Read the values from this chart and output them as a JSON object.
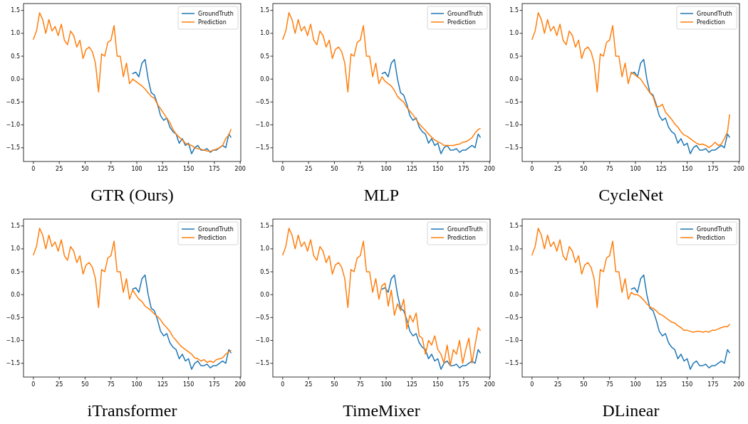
{
  "chart_data": [
    {
      "type": "line",
      "title": "GTR (Ours)",
      "legend": "top right",
      "xlim": [
        -9.55,
        200.55
      ],
      "ylim": [
        -1.8,
        1.65
      ],
      "xticks": [
        0,
        25,
        50,
        75,
        100,
        125,
        150,
        175,
        200
      ],
      "yticks": [
        {
          "value": -1.5,
          "label": "−1.5"
        },
        {
          "value": -1,
          "label": "−1.0"
        },
        {
          "value": -0.5,
          "label": "−0.5"
        },
        {
          "value": 0,
          "label": "0.0"
        },
        {
          "value": 0.5,
          "label": "0.5"
        },
        {
          "value": 1,
          "label": "1.0"
        },
        {
          "value": 1.5,
          "label": "1.5"
        }
      ],
      "x": [
        0,
        3,
        6,
        9,
        12,
        15,
        18,
        21,
        24,
        27,
        30,
        33,
        36,
        39,
        42,
        45,
        48,
        51,
        54,
        57,
        60,
        63,
        66,
        69,
        72,
        75,
        78,
        81,
        84,
        87,
        90,
        93,
        96,
        99,
        102,
        105,
        108,
        111,
        114,
        117,
        120,
        123,
        126,
        129,
        132,
        135,
        138,
        141,
        144,
        147,
        150,
        153,
        156,
        159,
        162,
        165,
        168,
        171,
        174,
        177,
        180,
        183,
        186,
        189,
        191
      ],
      "series": [
        {
          "name": "GroundTruth",
          "color": "#1f77b4",
          "values": [
            null,
            null,
            null,
            null,
            null,
            null,
            null,
            null,
            null,
            null,
            null,
            null,
            null,
            null,
            null,
            null,
            null,
            null,
            null,
            null,
            null,
            null,
            null,
            null,
            null,
            null,
            null,
            null,
            null,
            null,
            null,
            null,
            0.12,
            0.15,
            0.05,
            0.35,
            0.43,
            0.0,
            -0.3,
            -0.35,
            -0.55,
            -0.8,
            -0.9,
            -0.85,
            -1.05,
            -1.15,
            -1.2,
            -1.4,
            -1.3,
            -1.45,
            -1.4,
            -1.63,
            -1.5,
            -1.45,
            -1.55,
            -1.55,
            -1.52,
            -1.6,
            -1.55,
            -1.55,
            -1.5,
            -1.45,
            -1.5,
            -1.2,
            -1.27
          ]
        },
        {
          "name": "Prediction",
          "color": "#ff7f0e",
          "values": [
            0.87,
            1.05,
            1.45,
            1.3,
            1.0,
            1.3,
            1.05,
            1.15,
            0.95,
            1.2,
            0.85,
            0.75,
            1.05,
            0.95,
            0.7,
            0.85,
            0.45,
            0.65,
            0.7,
            0.6,
            0.35,
            -0.28,
            0.55,
            0.5,
            0.8,
            0.85,
            1.17,
            0.5,
            0.5,
            0.05,
            0.35,
            -0.1,
            0.0,
            -0.05,
            -0.1,
            -0.15,
            -0.22,
            -0.3,
            -0.38,
            -0.42,
            -0.55,
            -0.65,
            -0.75,
            -0.85,
            -0.95,
            -1.1,
            -1.2,
            -1.27,
            -1.33,
            -1.4,
            -1.43,
            -1.45,
            -1.5,
            -1.52,
            -1.53,
            -1.55,
            -1.57,
            -1.58,
            -1.55,
            -1.53,
            -1.5,
            -1.45,
            -1.3,
            -1.22,
            -1.1
          ]
        }
      ]
    },
    {
      "type": "line",
      "title": "MLP",
      "legend": "top right",
      "xlim": [
        -9.55,
        200.55
      ],
      "ylim": [
        -1.8,
        1.65
      ],
      "xticks": [
        0,
        25,
        50,
        75,
        100,
        125,
        150,
        175,
        200
      ],
      "yticks": [
        {
          "value": -1.5,
          "label": "−1.5"
        },
        {
          "value": -1,
          "label": "−1.0"
        },
        {
          "value": -0.5,
          "label": "−0.5"
        },
        {
          "value": 0,
          "label": "0.0"
        },
        {
          "value": 0.5,
          "label": "0.5"
        },
        {
          "value": 1,
          "label": "1.0"
        },
        {
          "value": 1.5,
          "label": "1.5"
        }
      ],
      "x": [
        0,
        3,
        6,
        9,
        12,
        15,
        18,
        21,
        24,
        27,
        30,
        33,
        36,
        39,
        42,
        45,
        48,
        51,
        54,
        57,
        60,
        63,
        66,
        69,
        72,
        75,
        78,
        81,
        84,
        87,
        90,
        93,
        96,
        99,
        102,
        105,
        108,
        111,
        114,
        117,
        120,
        123,
        126,
        129,
        132,
        135,
        138,
        141,
        144,
        147,
        150,
        153,
        156,
        159,
        162,
        165,
        168,
        171,
        174,
        177,
        180,
        183,
        186,
        189,
        191
      ],
      "series": [
        {
          "name": "GroundTruth",
          "color": "#1f77b4",
          "values": [
            null,
            null,
            null,
            null,
            null,
            null,
            null,
            null,
            null,
            null,
            null,
            null,
            null,
            null,
            null,
            null,
            null,
            null,
            null,
            null,
            null,
            null,
            null,
            null,
            null,
            null,
            null,
            null,
            null,
            null,
            null,
            null,
            0.12,
            0.15,
            0.05,
            0.35,
            0.43,
            0.0,
            -0.3,
            -0.35,
            -0.55,
            -0.8,
            -0.9,
            -0.85,
            -1.05,
            -1.15,
            -1.2,
            -1.4,
            -1.3,
            -1.45,
            -1.4,
            -1.63,
            -1.5,
            -1.45,
            -1.55,
            -1.55,
            -1.52,
            -1.6,
            -1.55,
            -1.55,
            -1.5,
            -1.45,
            -1.5,
            -1.2,
            -1.27
          ]
        },
        {
          "name": "Prediction",
          "color": "#ff7f0e",
          "values": [
            0.87,
            1.05,
            1.45,
            1.3,
            1.0,
            1.3,
            1.05,
            1.15,
            0.95,
            1.2,
            0.85,
            0.75,
            1.05,
            0.95,
            0.7,
            0.85,
            0.45,
            0.65,
            0.7,
            0.6,
            0.35,
            -0.28,
            0.55,
            0.5,
            0.8,
            0.85,
            1.17,
            0.5,
            0.5,
            0.05,
            0.35,
            -0.1,
            0.05,
            -0.05,
            -0.1,
            -0.15,
            -0.25,
            -0.38,
            -0.45,
            -0.5,
            -0.62,
            -0.7,
            -0.78,
            -0.88,
            -0.98,
            -1.05,
            -1.12,
            -1.2,
            -1.27,
            -1.33,
            -1.37,
            -1.4,
            -1.45,
            -1.45,
            -1.45,
            -1.45,
            -1.43,
            -1.42,
            -1.38,
            -1.37,
            -1.33,
            -1.28,
            -1.18,
            -1.1,
            -1.08
          ]
        }
      ]
    },
    {
      "type": "line",
      "title": "CycleNet",
      "legend": "top right",
      "xlim": [
        -9.55,
        200.55
      ],
      "ylim": [
        -1.8,
        1.65
      ],
      "xticks": [
        0,
        25,
        50,
        75,
        100,
        125,
        150,
        175,
        200
      ],
      "yticks": [
        {
          "value": -1.5,
          "label": "−1.5"
        },
        {
          "value": -1,
          "label": "−1.0"
        },
        {
          "value": -0.5,
          "label": "−0.5"
        },
        {
          "value": 0,
          "label": "0.0"
        },
        {
          "value": 0.5,
          "label": "0.5"
        },
        {
          "value": 1,
          "label": "1.0"
        },
        {
          "value": 1.5,
          "label": "1.5"
        }
      ],
      "x": [
        0,
        3,
        6,
        9,
        12,
        15,
        18,
        21,
        24,
        27,
        30,
        33,
        36,
        39,
        42,
        45,
        48,
        51,
        54,
        57,
        60,
        63,
        66,
        69,
        72,
        75,
        78,
        81,
        84,
        87,
        90,
        93,
        96,
        99,
        102,
        105,
        108,
        111,
        114,
        117,
        120,
        123,
        126,
        129,
        132,
        135,
        138,
        141,
        144,
        147,
        150,
        153,
        156,
        159,
        162,
        165,
        168,
        171,
        174,
        177,
        180,
        183,
        186,
        189,
        191
      ],
      "series": [
        {
          "name": "GroundTruth",
          "color": "#1f77b4",
          "values": [
            null,
            null,
            null,
            null,
            null,
            null,
            null,
            null,
            null,
            null,
            null,
            null,
            null,
            null,
            null,
            null,
            null,
            null,
            null,
            null,
            null,
            null,
            null,
            null,
            null,
            null,
            null,
            null,
            null,
            null,
            null,
            null,
            0.12,
            0.15,
            0.05,
            0.35,
            0.43,
            0.0,
            -0.3,
            -0.35,
            -0.55,
            -0.8,
            -0.9,
            -0.85,
            -1.05,
            -1.15,
            -1.2,
            -1.4,
            -1.3,
            -1.45,
            -1.4,
            -1.63,
            -1.5,
            -1.45,
            -1.55,
            -1.55,
            -1.52,
            -1.6,
            -1.55,
            -1.55,
            -1.5,
            -1.45,
            -1.5,
            -1.2,
            -1.27
          ]
        },
        {
          "name": "Prediction",
          "color": "#ff7f0e",
          "values": [
            0.87,
            1.05,
            1.45,
            1.3,
            1.0,
            1.3,
            1.05,
            1.15,
            0.95,
            1.2,
            0.85,
            0.75,
            1.05,
            0.95,
            0.7,
            0.85,
            0.45,
            0.65,
            0.7,
            0.6,
            0.35,
            -0.28,
            0.55,
            0.5,
            0.8,
            0.85,
            1.17,
            0.5,
            0.5,
            0.05,
            0.35,
            -0.1,
            0.15,
            0.1,
            0.05,
            0.0,
            -0.1,
            -0.2,
            -0.3,
            -0.38,
            -0.6,
            -0.6,
            -0.55,
            -0.72,
            -0.8,
            -0.88,
            -0.98,
            -1.05,
            -1.15,
            -1.22,
            -1.25,
            -1.3,
            -1.35,
            -1.4,
            -1.43,
            -1.42,
            -1.45,
            -1.5,
            -1.45,
            -1.38,
            -1.45,
            -1.42,
            -1.3,
            -1.15,
            -0.78
          ]
        }
      ]
    },
    {
      "type": "line",
      "title": "iTransformer",
      "legend": "top right",
      "xlim": [
        -9.55,
        200.55
      ],
      "ylim": [
        -1.8,
        1.65
      ],
      "xticks": [
        0,
        25,
        50,
        75,
        100,
        125,
        150,
        175,
        200
      ],
      "yticks": [
        {
          "value": -1.5,
          "label": "−1.5"
        },
        {
          "value": -1,
          "label": "−1.0"
        },
        {
          "value": -0.5,
          "label": "−0.5"
        },
        {
          "value": 0,
          "label": "0.0"
        },
        {
          "value": 0.5,
          "label": "0.5"
        },
        {
          "value": 1,
          "label": "1.0"
        },
        {
          "value": 1.5,
          "label": "1.5"
        }
      ],
      "x": [
        0,
        3,
        6,
        9,
        12,
        15,
        18,
        21,
        24,
        27,
        30,
        33,
        36,
        39,
        42,
        45,
        48,
        51,
        54,
        57,
        60,
        63,
        66,
        69,
        72,
        75,
        78,
        81,
        84,
        87,
        90,
        93,
        96,
        99,
        102,
        105,
        108,
        111,
        114,
        117,
        120,
        123,
        126,
        129,
        132,
        135,
        138,
        141,
        144,
        147,
        150,
        153,
        156,
        159,
        162,
        165,
        168,
        171,
        174,
        177,
        180,
        183,
        186,
        189,
        191
      ],
      "series": [
        {
          "name": "GroundTruth",
          "color": "#1f77b4",
          "values": [
            null,
            null,
            null,
            null,
            null,
            null,
            null,
            null,
            null,
            null,
            null,
            null,
            null,
            null,
            null,
            null,
            null,
            null,
            null,
            null,
            null,
            null,
            null,
            null,
            null,
            null,
            null,
            null,
            null,
            null,
            null,
            null,
            0.12,
            0.15,
            0.05,
            0.35,
            0.43,
            0.0,
            -0.3,
            -0.35,
            -0.55,
            -0.8,
            -0.9,
            -0.85,
            -1.05,
            -1.15,
            -1.2,
            -1.4,
            -1.3,
            -1.45,
            -1.4,
            -1.63,
            -1.5,
            -1.45,
            -1.55,
            -1.55,
            -1.52,
            -1.6,
            -1.55,
            -1.55,
            -1.5,
            -1.45,
            -1.5,
            -1.2,
            -1.27
          ]
        },
        {
          "name": "Prediction",
          "color": "#ff7f0e",
          "values": [
            0.87,
            1.05,
            1.45,
            1.3,
            1.0,
            1.3,
            1.05,
            1.15,
            0.95,
            1.2,
            0.85,
            0.75,
            1.05,
            0.95,
            0.7,
            0.85,
            0.45,
            0.65,
            0.7,
            0.6,
            0.35,
            -0.28,
            0.55,
            0.5,
            0.8,
            0.85,
            1.17,
            0.5,
            0.5,
            0.05,
            0.35,
            -0.1,
            0.1,
            0.0,
            -0.1,
            -0.15,
            -0.25,
            -0.3,
            -0.35,
            -0.42,
            -0.48,
            -0.55,
            -0.65,
            -0.72,
            -0.8,
            -0.92,
            -1.0,
            -1.08,
            -1.15,
            -1.2,
            -1.25,
            -1.3,
            -1.38,
            -1.4,
            -1.45,
            -1.42,
            -1.48,
            -1.45,
            -1.48,
            -1.42,
            -1.4,
            -1.38,
            -1.3,
            -1.25,
            -1.22
          ]
        }
      ]
    },
    {
      "type": "line",
      "title": "TimeMixer",
      "legend": "top right",
      "xlim": [
        -9.55,
        200.55
      ],
      "ylim": [
        -1.8,
        1.65
      ],
      "xticks": [
        0,
        25,
        50,
        75,
        100,
        125,
        150,
        175,
        200
      ],
      "yticks": [
        {
          "value": -1.5,
          "label": "−1.5"
        },
        {
          "value": -1,
          "label": "−1.0"
        },
        {
          "value": -0.5,
          "label": "−0.5"
        },
        {
          "value": 0,
          "label": "0.0"
        },
        {
          "value": 0.5,
          "label": "0.5"
        },
        {
          "value": 1,
          "label": "1.0"
        },
        {
          "value": 1.5,
          "label": "1.5"
        }
      ],
      "x": [
        0,
        3,
        6,
        9,
        12,
        15,
        18,
        21,
        24,
        27,
        30,
        33,
        36,
        39,
        42,
        45,
        48,
        51,
        54,
        57,
        60,
        63,
        66,
        69,
        72,
        75,
        78,
        81,
        84,
        87,
        90,
        93,
        96,
        99,
        102,
        105,
        108,
        111,
        114,
        117,
        120,
        123,
        126,
        129,
        132,
        135,
        138,
        141,
        144,
        147,
        150,
        153,
        156,
        159,
        162,
        165,
        168,
        171,
        174,
        177,
        180,
        183,
        186,
        189,
        191
      ],
      "series": [
        {
          "name": "GroundTruth",
          "color": "#1f77b4",
          "values": [
            null,
            null,
            null,
            null,
            null,
            null,
            null,
            null,
            null,
            null,
            null,
            null,
            null,
            null,
            null,
            null,
            null,
            null,
            null,
            null,
            null,
            null,
            null,
            null,
            null,
            null,
            null,
            null,
            null,
            null,
            null,
            null,
            0.12,
            0.15,
            0.05,
            0.35,
            0.43,
            0.0,
            -0.3,
            -0.35,
            -0.55,
            -0.8,
            -0.9,
            -0.85,
            -1.05,
            -1.15,
            -1.2,
            -1.4,
            -1.3,
            -1.45,
            -1.4,
            -1.63,
            -1.5,
            -1.45,
            -1.55,
            -1.55,
            -1.52,
            -1.6,
            -1.55,
            -1.55,
            -1.5,
            -1.45,
            -1.5,
            -1.2,
            -1.27
          ]
        },
        {
          "name": "Prediction",
          "color": "#ff7f0e",
          "values": [
            0.87,
            1.05,
            1.45,
            1.3,
            1.0,
            1.3,
            1.05,
            1.15,
            0.95,
            1.2,
            0.85,
            0.75,
            1.05,
            0.95,
            0.7,
            0.85,
            0.45,
            0.65,
            0.7,
            0.6,
            0.35,
            -0.28,
            0.55,
            0.5,
            0.8,
            0.85,
            1.17,
            0.5,
            0.5,
            0.05,
            0.35,
            -0.1,
            0.2,
            0.25,
            -0.25,
            0.1,
            -0.45,
            -0.2,
            -0.35,
            -0.1,
            -0.75,
            -0.45,
            -0.6,
            -0.4,
            -0.9,
            -0.95,
            -1.3,
            -1.0,
            -1.1,
            -0.9,
            -1.2,
            -1.3,
            -1.5,
            -1.1,
            -1.55,
            -1.2,
            -1.3,
            -1.0,
            -1.5,
            -1.2,
            -0.95,
            -1.5,
            -1.1,
            -0.72,
            -0.78
          ]
        }
      ]
    },
    {
      "type": "line",
      "title": "DLinear",
      "legend": "top right",
      "xlim": [
        -9.55,
        200.55
      ],
      "ylim": [
        -1.8,
        1.65
      ],
      "xticks": [
        0,
        25,
        50,
        75,
        100,
        125,
        150,
        175,
        200
      ],
      "yticks": [
        {
          "value": -1.5,
          "label": "−1.5"
        },
        {
          "value": -1,
          "label": "−1.0"
        },
        {
          "value": -0.5,
          "label": "−0.5"
        },
        {
          "value": 0,
          "label": "0.0"
        },
        {
          "value": 0.5,
          "label": "0.5"
        },
        {
          "value": 1,
          "label": "1.0"
        },
        {
          "value": 1.5,
          "label": "1.5"
        }
      ],
      "x": [
        0,
        3,
        6,
        9,
        12,
        15,
        18,
        21,
        24,
        27,
        30,
        33,
        36,
        39,
        42,
        45,
        48,
        51,
        54,
        57,
        60,
        63,
        66,
        69,
        72,
        75,
        78,
        81,
        84,
        87,
        90,
        93,
        96,
        99,
        102,
        105,
        108,
        111,
        114,
        117,
        120,
        123,
        126,
        129,
        132,
        135,
        138,
        141,
        144,
        147,
        150,
        153,
        156,
        159,
        162,
        165,
        168,
        171,
        174,
        177,
        180,
        183,
        186,
        189,
        191
      ],
      "series": [
        {
          "name": "GroundTruth",
          "color": "#1f77b4",
          "values": [
            null,
            null,
            null,
            null,
            null,
            null,
            null,
            null,
            null,
            null,
            null,
            null,
            null,
            null,
            null,
            null,
            null,
            null,
            null,
            null,
            null,
            null,
            null,
            null,
            null,
            null,
            null,
            null,
            null,
            null,
            null,
            null,
            0.12,
            0.15,
            0.05,
            0.35,
            0.43,
            0.0,
            -0.3,
            -0.35,
            -0.55,
            -0.8,
            -0.9,
            -0.85,
            -1.05,
            -1.15,
            -1.2,
            -1.4,
            -1.3,
            -1.45,
            -1.4,
            -1.63,
            -1.5,
            -1.45,
            -1.55,
            -1.55,
            -1.52,
            -1.6,
            -1.55,
            -1.55,
            -1.5,
            -1.45,
            -1.5,
            -1.2,
            -1.27
          ]
        },
        {
          "name": "Prediction",
          "color": "#ff7f0e",
          "values": [
            0.87,
            1.05,
            1.45,
            1.3,
            1.0,
            1.3,
            1.05,
            1.15,
            0.95,
            1.2,
            0.85,
            0.75,
            1.05,
            0.95,
            0.7,
            0.85,
            0.45,
            0.65,
            0.7,
            0.6,
            0.35,
            -0.28,
            0.55,
            0.5,
            0.8,
            0.85,
            1.17,
            0.5,
            0.5,
            0.05,
            0.35,
            -0.1,
            0.05,
            0.0,
            0.0,
            -0.05,
            -0.12,
            -0.2,
            -0.27,
            -0.3,
            -0.35,
            -0.42,
            -0.45,
            -0.5,
            -0.55,
            -0.6,
            -0.62,
            -0.68,
            -0.72,
            -0.78,
            -0.78,
            -0.8,
            -0.82,
            -0.8,
            -0.8,
            -0.82,
            -0.8,
            -0.82,
            -0.78,
            -0.78,
            -0.75,
            -0.72,
            -0.7,
            -0.7,
            -0.65
          ]
        }
      ]
    }
  ]
}
